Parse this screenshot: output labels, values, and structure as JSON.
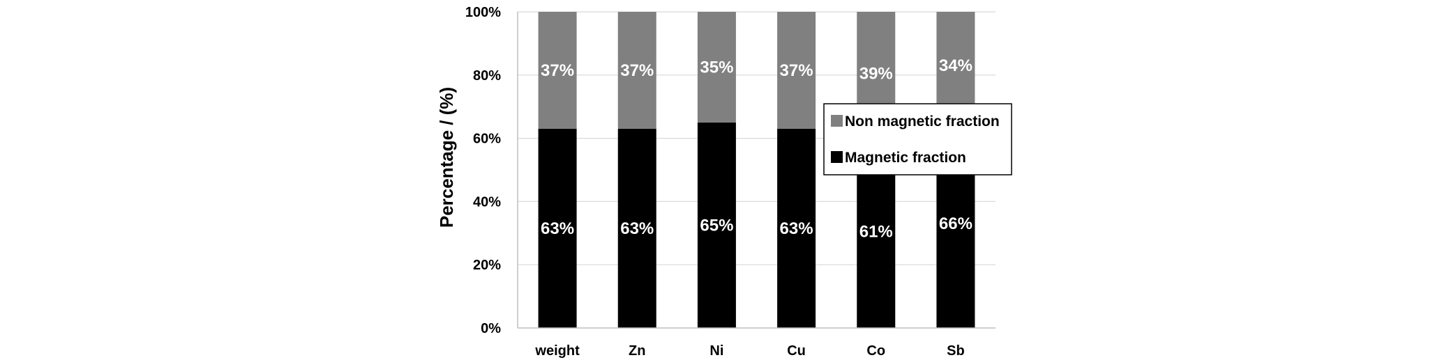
{
  "chart_data": {
    "type": "bar",
    "stacked": true,
    "categories": [
      "weight",
      "Zn",
      "Ni",
      "Cu",
      "Co",
      "Sb"
    ],
    "series": [
      {
        "name": "Magnetic fraction",
        "values": [
          63,
          63,
          65,
          63,
          61,
          66
        ],
        "labels": [
          "63%",
          "63%",
          "65%",
          "63%",
          "61%",
          "66%"
        ],
        "color": "#000000"
      },
      {
        "name": "Non magnetic fraction",
        "values": [
          37,
          37,
          35,
          37,
          39,
          34
        ],
        "labels": [
          "37%",
          "37%",
          "35%",
          "37%",
          "39%",
          "34%"
        ],
        "color": "#808080"
      }
    ],
    "ylabel": "Percentage / (%)",
    "ylim": [
      0,
      100
    ],
    "yticks": [
      "0%",
      "20%",
      "40%",
      "60%",
      "80%",
      "100%"
    ],
    "grid": true,
    "legend_position": "right"
  }
}
